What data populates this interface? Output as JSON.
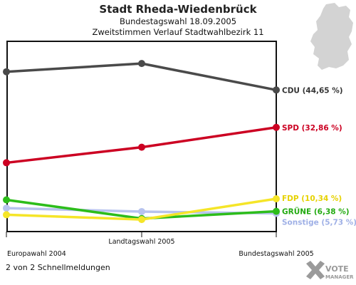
{
  "chart_data": {
    "type": "line",
    "title": "Stadt Rheda-Wiedenbrück",
    "subtitle": "Bundestagswahl 18.09.2005",
    "subtitle2": "Zweitstimmen Verlauf Stadtwahlbezirk 11",
    "categories": [
      "Europawahl 2004",
      "Landtagswahl 2005",
      "Bundestagswahl 2005"
    ],
    "ylim": [
      0,
      60
    ],
    "grid": false,
    "series": [
      {
        "name": "CDU",
        "values": [
          50.4,
          53.0,
          44.65
        ],
        "label": "CDU (44,65 %)",
        "color": "#4a4a4a",
        "label_color": "#333333"
      },
      {
        "name": "SPD",
        "values": [
          21.7,
          26.6,
          32.86
        ],
        "label": "SPD (32,86 %)",
        "color": "#cc0022",
        "label_color": "#cc0022"
      },
      {
        "name": "FDP",
        "values": [
          5.3,
          3.8,
          10.34
        ],
        "label": "FDP (10,34 %)",
        "color": "#f5e528",
        "label_color": "#e6d200"
      },
      {
        "name": "GRÜNE",
        "values": [
          10.0,
          4.1,
          6.38
        ],
        "label": "GRÜNE (6,38 %)",
        "color": "#2dbd1b",
        "label_color": "#22aa10"
      },
      {
        "name": "Sonstige",
        "values": [
          7.4,
          6.3,
          5.73
        ],
        "label": "Sonstige (5,73 %)",
        "color": "#b7c3ee",
        "label_color": "#9fb0e6"
      }
    ]
  },
  "footer": {
    "text": "2 von 2 Schnellmeldungen"
  },
  "logo": {
    "line1": "VOTE",
    "line2": "MANAGER"
  },
  "colors": {
    "axis": "#111111",
    "map": "#d3d3d3",
    "logo": "#9a9a9a"
  }
}
